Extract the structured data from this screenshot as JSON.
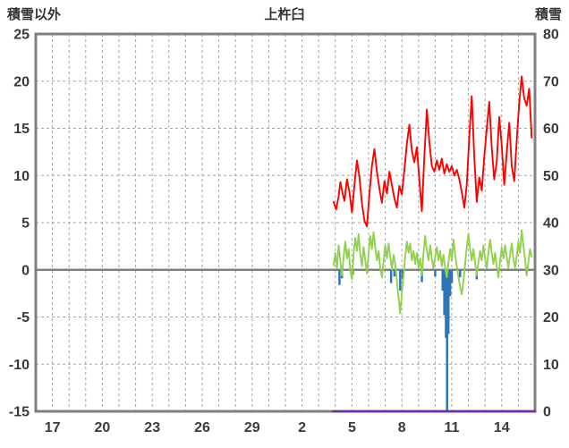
{
  "header": {
    "left_axis_title": "積雪以外",
    "chart_title": "上杵臼",
    "right_axis_title": "積雪"
  },
  "colors": {
    "red_series": "#ff0000",
    "green_series": "#92d050",
    "blue_bars": "#2e75b6",
    "purple_series": "#7030a0",
    "frame": "#808080",
    "zero_line": "#808080",
    "grid": "#a6a6a6",
    "text": "#3a3a3a"
  },
  "chart_data": {
    "type": "line",
    "title": "上杵臼",
    "grid": true,
    "legend": "none",
    "left_axis": {
      "label": "積雪以外",
      "min": -15,
      "max": 25,
      "ticks": [
        25,
        20,
        15,
        10,
        5,
        0,
        -5,
        -10,
        -15
      ]
    },
    "right_axis": {
      "label": "積雪",
      "min": 0,
      "max": 80,
      "ticks": [
        80,
        70,
        60,
        50,
        40,
        30,
        20,
        10,
        0
      ]
    },
    "x_axis": {
      "tick_labels": [
        "17",
        "20",
        "23",
        "26",
        "29",
        "2",
        "5",
        "8",
        "11",
        "14"
      ],
      "tick_positions": [
        1,
        4,
        7,
        10,
        13,
        16,
        19,
        22,
        25,
        28
      ],
      "range": [
        0,
        30
      ],
      "gridline_every": 1
    },
    "series": [
      {
        "name": "blue-bars",
        "type": "bar",
        "axis": "left",
        "color": "#2e75b6",
        "points": [
          [
            18.25,
            -1.6
          ],
          [
            18.4,
            -0.9
          ],
          [
            19.05,
            -0.5
          ],
          [
            21.35,
            -1.4
          ],
          [
            21.55,
            -0.7
          ],
          [
            21.9,
            -2.2
          ],
          [
            22.05,
            -1.0
          ],
          [
            23.2,
            -1.3
          ],
          [
            24.0,
            -0.7
          ],
          [
            24.45,
            -2.2
          ],
          [
            24.55,
            -4.8
          ],
          [
            24.65,
            -7.2
          ],
          [
            24.72,
            -15.0
          ],
          [
            24.8,
            -6.8
          ],
          [
            24.9,
            -2.8
          ],
          [
            25.0,
            -1.4
          ],
          [
            25.5,
            -0.8
          ],
          [
            26.5,
            -1.0
          ],
          [
            29.5,
            -0.4
          ]
        ]
      },
      {
        "name": "green-line",
        "type": "line",
        "axis": "left",
        "color": "#92d050",
        "points": [
          [
            17.9,
            0.5
          ],
          [
            18.0,
            1.8
          ],
          [
            18.1,
            0.2
          ],
          [
            18.2,
            2.6
          ],
          [
            18.3,
            1.0
          ],
          [
            18.4,
            -0.6
          ],
          [
            18.5,
            1.4
          ],
          [
            18.6,
            3.0
          ],
          [
            18.7,
            1.2
          ],
          [
            18.8,
            2.2
          ],
          [
            18.9,
            0.0
          ],
          [
            19.0,
            -1.0
          ],
          [
            19.1,
            1.6
          ],
          [
            19.2,
            3.4
          ],
          [
            19.3,
            2.0
          ],
          [
            19.4,
            3.8
          ],
          [
            19.5,
            1.6
          ],
          [
            19.6,
            0.4
          ],
          [
            19.7,
            2.4
          ],
          [
            19.8,
            1.0
          ],
          [
            19.9,
            -0.4
          ],
          [
            20.0,
            1.8
          ],
          [
            20.1,
            3.6
          ],
          [
            20.2,
            2.2
          ],
          [
            20.3,
            4.0
          ],
          [
            20.4,
            2.4
          ],
          [
            20.5,
            1.0
          ],
          [
            20.6,
            2.0
          ],
          [
            20.7,
            0.2
          ],
          [
            20.8,
            -0.8
          ],
          [
            20.9,
            0.8
          ],
          [
            21.0,
            2.6
          ],
          [
            21.1,
            1.2
          ],
          [
            21.2,
            2.8
          ],
          [
            21.3,
            1.4
          ],
          [
            21.4,
            0.0
          ],
          [
            21.5,
            1.6
          ],
          [
            21.6,
            0.6
          ],
          [
            21.7,
            -1.2
          ],
          [
            21.8,
            -3.0
          ],
          [
            21.9,
            -4.6
          ],
          [
            22.0,
            -2.4
          ],
          [
            22.1,
            -0.6
          ],
          [
            22.2,
            1.4
          ],
          [
            22.3,
            3.0
          ],
          [
            22.4,
            1.8
          ],
          [
            22.5,
            2.8
          ],
          [
            22.6,
            1.0
          ],
          [
            22.7,
            2.0
          ],
          [
            22.8,
            0.6
          ],
          [
            22.9,
            1.8
          ],
          [
            23.0,
            0.2
          ],
          [
            23.1,
            1.2
          ],
          [
            23.2,
            -0.6
          ],
          [
            23.3,
            1.8
          ],
          [
            23.4,
            3.6
          ],
          [
            23.5,
            2.0
          ],
          [
            23.6,
            1.0
          ],
          [
            23.7,
            2.6
          ],
          [
            23.8,
            1.2
          ],
          [
            23.9,
            0.2
          ],
          [
            24.0,
            1.4
          ],
          [
            24.1,
            2.4
          ],
          [
            24.2,
            1.0
          ],
          [
            24.3,
            2.0
          ],
          [
            24.4,
            0.4
          ],
          [
            24.5,
            1.6
          ],
          [
            24.6,
            0.2
          ],
          [
            24.7,
            -0.8
          ],
          [
            24.8,
            0.8
          ],
          [
            24.9,
            2.2
          ],
          [
            25.0,
            1.0
          ],
          [
            25.1,
            3.2
          ],
          [
            25.2,
            1.6
          ],
          [
            25.3,
            0.4
          ],
          [
            25.4,
            -0.8
          ],
          [
            25.5,
            -1.8
          ],
          [
            25.6,
            -2.6
          ],
          [
            25.7,
            -1.2
          ],
          [
            25.8,
            0.6
          ],
          [
            25.9,
            2.4
          ],
          [
            26.0,
            3.8
          ],
          [
            26.1,
            2.2
          ],
          [
            26.2,
            1.0
          ],
          [
            26.3,
            2.2
          ],
          [
            26.4,
            0.8
          ],
          [
            26.5,
            -0.6
          ],
          [
            26.6,
            0.8
          ],
          [
            26.7,
            2.0
          ],
          [
            26.8,
            1.0
          ],
          [
            26.9,
            2.6
          ],
          [
            27.0,
            1.2
          ],
          [
            27.1,
            0.2
          ],
          [
            27.2,
            1.8
          ],
          [
            27.3,
            3.2
          ],
          [
            27.4,
            1.8
          ],
          [
            27.5,
            0.6
          ],
          [
            27.6,
            1.8
          ],
          [
            27.7,
            0.4
          ],
          [
            27.8,
            -0.8
          ],
          [
            27.9,
            0.8
          ],
          [
            28.0,
            2.4
          ],
          [
            28.1,
            1.2
          ],
          [
            28.2,
            2.6
          ],
          [
            28.3,
            1.4
          ],
          [
            28.4,
            0.2
          ],
          [
            28.5,
            1.6
          ],
          [
            28.6,
            2.8
          ],
          [
            28.7,
            1.2
          ],
          [
            28.8,
            0.2
          ],
          [
            28.9,
            1.4
          ],
          [
            29.0,
            3.0
          ],
          [
            29.1,
            1.8
          ],
          [
            29.2,
            4.2
          ],
          [
            29.3,
            2.6
          ],
          [
            29.4,
            1.2
          ],
          [
            29.5,
            -0.6
          ],
          [
            29.6,
            0.8
          ],
          [
            29.7,
            2.2
          ],
          [
            29.8,
            1.4
          ]
        ]
      },
      {
        "name": "red-line",
        "type": "line",
        "axis": "left",
        "color": "#ff0000",
        "points": [
          [
            17.9,
            7.2
          ],
          [
            18.05,
            6.4
          ],
          [
            18.2,
            7.8
          ],
          [
            18.3,
            9.3
          ],
          [
            18.45,
            8.0
          ],
          [
            18.55,
            7.3
          ],
          [
            18.7,
            9.6
          ],
          [
            18.85,
            8.2
          ],
          [
            19.0,
            6.1
          ],
          [
            19.15,
            9.0
          ],
          [
            19.3,
            11.6
          ],
          [
            19.45,
            9.8
          ],
          [
            19.6,
            7.0
          ],
          [
            19.75,
            5.2
          ],
          [
            19.9,
            4.6
          ],
          [
            20.05,
            8.0
          ],
          [
            20.2,
            11.0
          ],
          [
            20.35,
            12.8
          ],
          [
            20.5,
            10.4
          ],
          [
            20.65,
            8.6
          ],
          [
            20.8,
            7.1
          ],
          [
            20.95,
            9.4
          ],
          [
            21.1,
            8.1
          ],
          [
            21.25,
            10.4
          ],
          [
            21.4,
            9.0
          ],
          [
            21.55,
            7.6
          ],
          [
            21.7,
            6.6
          ],
          [
            21.85,
            8.9
          ],
          [
            22.0,
            8.0
          ],
          [
            22.15,
            10.6
          ],
          [
            22.3,
            13.4
          ],
          [
            22.45,
            15.4
          ],
          [
            22.6,
            12.6
          ],
          [
            22.75,
            11.4
          ],
          [
            22.9,
            13.0
          ],
          [
            23.05,
            9.6
          ],
          [
            23.2,
            6.2
          ],
          [
            23.35,
            12.0
          ],
          [
            23.5,
            17.0
          ],
          [
            23.65,
            13.6
          ],
          [
            23.8,
            11.0
          ],
          [
            23.95,
            10.4
          ],
          [
            24.1,
            11.6
          ],
          [
            24.25,
            10.6
          ],
          [
            24.4,
            11.8
          ],
          [
            24.55,
            10.2
          ],
          [
            24.7,
            11.2
          ],
          [
            24.85,
            10.4
          ],
          [
            25.0,
            11.0
          ],
          [
            25.15,
            10.0
          ],
          [
            25.3,
            10.6
          ],
          [
            25.45,
            9.6
          ],
          [
            25.6,
            8.2
          ],
          [
            25.75,
            6.6
          ],
          [
            25.9,
            9.0
          ],
          [
            26.05,
            14.0
          ],
          [
            26.2,
            18.4
          ],
          [
            26.35,
            12.0
          ],
          [
            26.5,
            7.2
          ],
          [
            26.65,
            9.8
          ],
          [
            26.8,
            8.4
          ],
          [
            26.95,
            12.0
          ],
          [
            27.1,
            15.0
          ],
          [
            27.25,
            17.8
          ],
          [
            27.4,
            13.0
          ],
          [
            27.55,
            9.6
          ],
          [
            27.7,
            11.4
          ],
          [
            27.85,
            16.2
          ],
          [
            28.0,
            13.2
          ],
          [
            28.15,
            9.0
          ],
          [
            28.3,
            12.4
          ],
          [
            28.45,
            15.6
          ],
          [
            28.6,
            11.0
          ],
          [
            28.75,
            9.4
          ],
          [
            28.9,
            13.6
          ],
          [
            29.05,
            17.6
          ],
          [
            29.2,
            20.5
          ],
          [
            29.35,
            18.2
          ],
          [
            29.5,
            17.4
          ],
          [
            29.65,
            19.2
          ],
          [
            29.8,
            14.0
          ]
        ]
      },
      {
        "name": "purple-line",
        "type": "line",
        "axis": "right",
        "color": "#7030a0",
        "points": [
          [
            17.85,
            0
          ],
          [
            30,
            0
          ]
        ]
      }
    ]
  }
}
